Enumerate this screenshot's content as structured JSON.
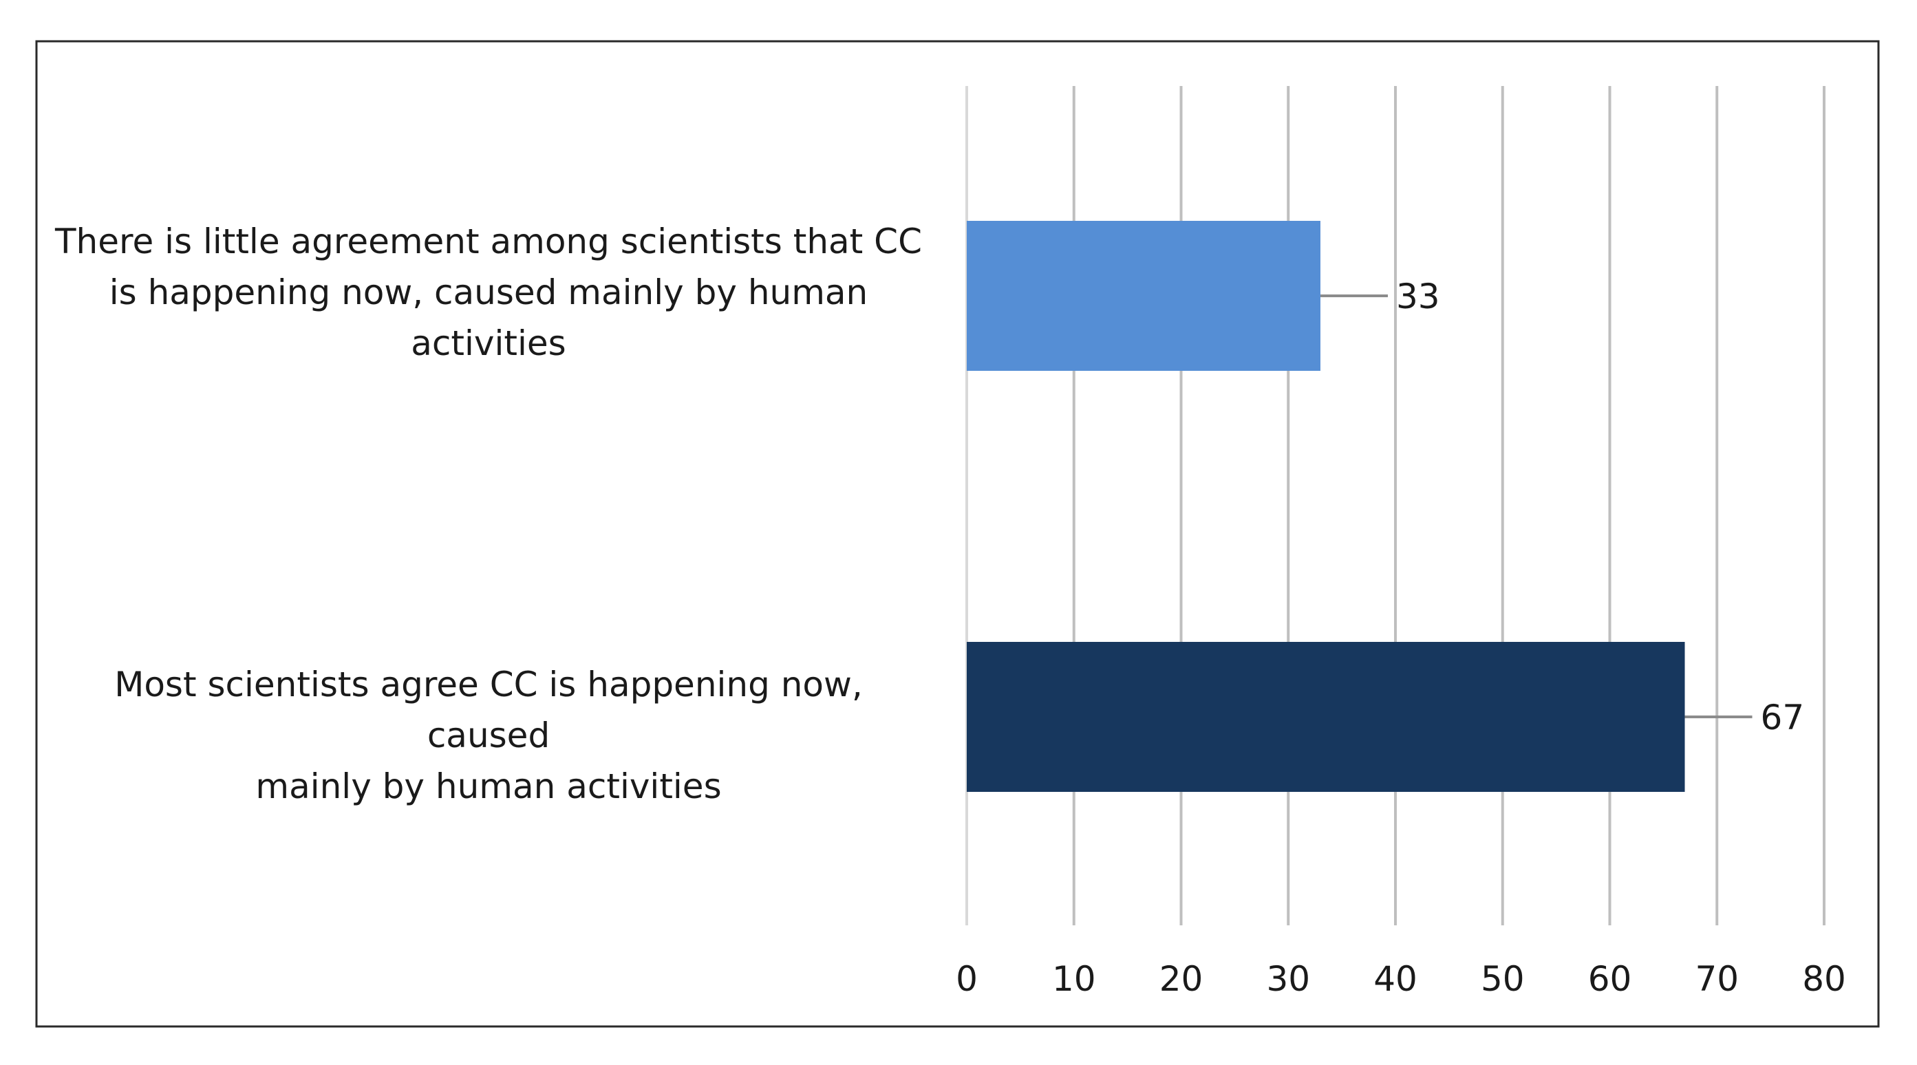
{
  "chart_data": {
    "type": "bar",
    "orientation": "horizontal",
    "categories": [
      "There is little agreement among scientists that CC is happening now,  caused mainly by human activities",
      "Most scientists agree CC is happening now, caused mainly by human activities"
    ],
    "category_lines": [
      [
        "There is little agreement among scientists that CC",
        "is happening now,  caused mainly by human",
        "activities"
      ],
      [
        "Most scientists agree CC is happening now, caused",
        "mainly by human activities"
      ]
    ],
    "values": [
      33,
      67
    ],
    "data_labels": [
      "33",
      "67"
    ],
    "bar_colors": [
      "#558ed5",
      "#17375e"
    ],
    "xlim": [
      0,
      80
    ],
    "x_ticks": [
      0,
      10,
      20,
      30,
      40,
      50,
      60,
      70,
      80
    ],
    "x_tick_labels": [
      "0",
      "10",
      "20",
      "30",
      "40",
      "50",
      "60",
      "70",
      "80"
    ],
    "grid": true,
    "grid_color": "#bfbfbf",
    "title": "",
    "xlabel": "",
    "ylabel": "",
    "legend": "none"
  }
}
